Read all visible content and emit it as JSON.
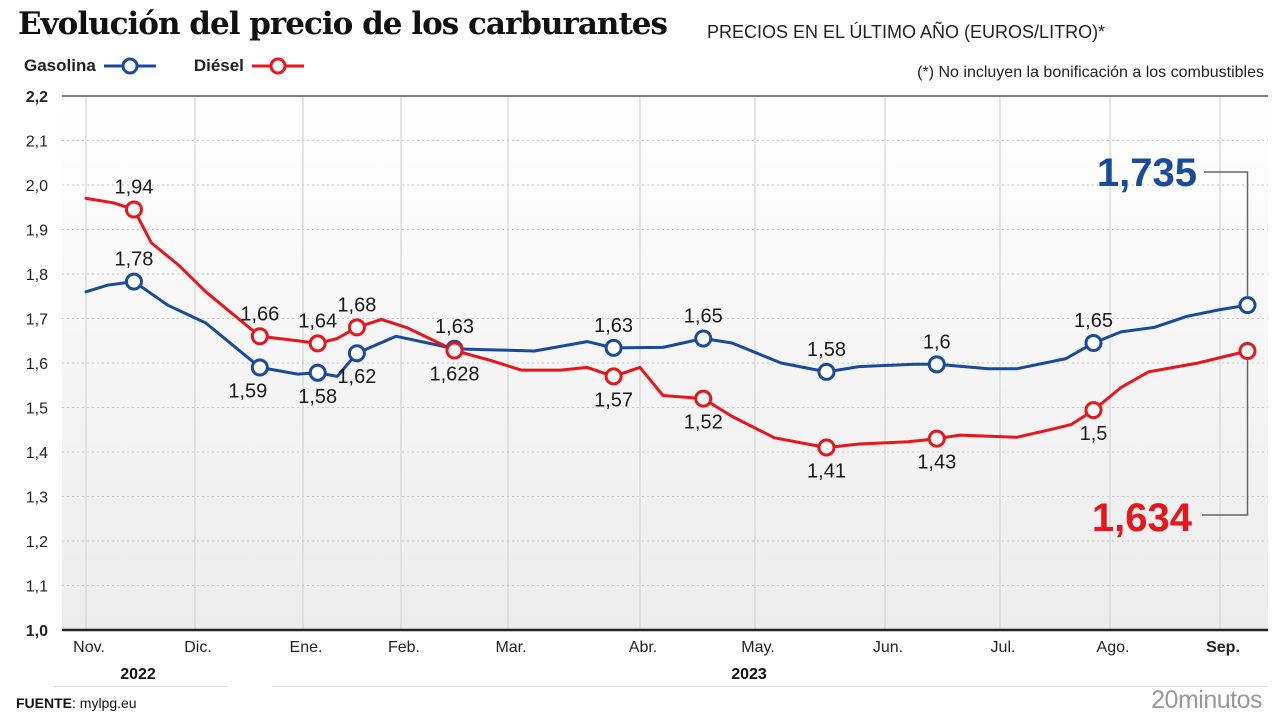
{
  "header": {
    "title": "Evolución del precio de los carburantes",
    "subtitle": "PRECIOS EN EL ÚLTIMO AÑO (EUROS/LITRO)*",
    "note": "(*) No incluyen la bonificación a los combustibles"
  },
  "legend": [
    {
      "label": "Gasolina",
      "color": "#1a4a9c"
    },
    {
      "label": "Diésel",
      "color": "#e8151b"
    }
  ],
  "footer": {
    "source_label": "FUENTE",
    "source_value": ": mylpg.eu",
    "brand": "20minutos"
  },
  "chart_data": {
    "type": "line",
    "title": "Evolución del precio de los carburantes",
    "subtitle": "PRECIOS EN EL ÚLTIMO AÑO (EUROS/LITRO)*",
    "xlabel": "",
    "ylabel": "Euros/litro",
    "ylim": [
      1.0,
      2.2
    ],
    "yticks": [
      "2,2",
      "2,1",
      "2,0",
      "1,9",
      "1,8",
      "1,7",
      "1,6",
      "1,5",
      "1,4",
      "1,3",
      "1,2",
      "1,1",
      "1,0"
    ],
    "ytick_values": [
      2.2,
      2.1,
      2.0,
      1.9,
      1.8,
      1.7,
      1.6,
      1.5,
      1.4,
      1.3,
      1.2,
      1.1,
      1.0
    ],
    "grid": true,
    "legend_position": "top-left",
    "x_unit": "months since start of Nov 2022",
    "xlim": [
      -0.05,
      10.3
    ],
    "months": [
      {
        "label": "Nov.",
        "x": 0,
        "bold": false
      },
      {
        "label": "Dic.",
        "x": 1,
        "bold": false
      },
      {
        "label": "Ene.",
        "x": 2,
        "bold": false
      },
      {
        "label": "Feb.",
        "x": 3,
        "bold": false
      },
      {
        "label": "Mar.",
        "x": 4,
        "bold": false
      },
      {
        "label": "Abr.",
        "x": 5,
        "bold": false
      },
      {
        "label": "May.",
        "x": 6,
        "bold": false
      },
      {
        "label": "Jun.",
        "x": 7,
        "bold": false
      },
      {
        "label": "Jul.",
        "x": 8,
        "bold": false
      },
      {
        "label": "Ago.",
        "x": 9,
        "bold": false
      },
      {
        "label": "Sep.",
        "x": 10,
        "bold": true
      }
    ],
    "years": [
      {
        "label": "2022",
        "from": -0.05,
        "to": 1.7
      },
      {
        "label": "2023",
        "from": 2.15,
        "to": 10.3
      }
    ],
    "series": [
      {
        "name": "Gasolina",
        "color": "#1a4a9c",
        "points": [
          [
            0.0,
            1.76
          ],
          [
            0.2,
            1.775
          ],
          [
            0.44,
            1.783
          ],
          [
            0.75,
            1.73
          ],
          [
            1.1,
            1.69
          ],
          [
            1.35,
            1.64
          ],
          [
            1.6,
            1.59
          ],
          [
            1.95,
            1.575
          ],
          [
            2.15,
            1.578
          ],
          [
            2.35,
            1.57
          ],
          [
            2.55,
            1.622
          ],
          [
            2.95,
            1.66
          ],
          [
            3.25,
            1.645
          ],
          [
            3.5,
            1.632
          ],
          [
            3.8,
            1.63
          ],
          [
            4.2,
            1.627
          ],
          [
            4.6,
            1.648
          ],
          [
            4.8,
            1.634
          ],
          [
            5.2,
            1.635
          ],
          [
            5.55,
            1.655
          ],
          [
            5.8,
            1.645
          ],
          [
            6.2,
            1.6
          ],
          [
            6.55,
            1.58
          ],
          [
            6.8,
            1.592
          ],
          [
            7.25,
            1.597
          ],
          [
            7.45,
            1.597
          ],
          [
            7.9,
            1.587
          ],
          [
            8.15,
            1.587
          ],
          [
            8.6,
            1.61
          ],
          [
            8.85,
            1.645
          ],
          [
            9.1,
            1.67
          ],
          [
            9.4,
            1.68
          ],
          [
            9.7,
            1.705
          ],
          [
            10.0,
            1.72
          ],
          [
            10.25,
            1.73
          ]
        ],
        "markers": [
          {
            "x": 0.44,
            "y": 1.783,
            "label": "1,78",
            "pos": "above"
          },
          {
            "x": 1.6,
            "y": 1.59,
            "label": "1,59",
            "pos": "below-left"
          },
          {
            "x": 2.15,
            "y": 1.578,
            "label": "1,58",
            "pos": "below"
          },
          {
            "x": 2.55,
            "y": 1.622,
            "label": "1,62",
            "pos": "below"
          },
          {
            "x": 3.5,
            "y": 1.632,
            "label": "1,63",
            "pos": "above"
          },
          {
            "x": 4.8,
            "y": 1.634,
            "label": "1,63",
            "pos": "above"
          },
          {
            "x": 5.55,
            "y": 1.655,
            "label": "1,65",
            "pos": "above"
          },
          {
            "x": 6.55,
            "y": 1.58,
            "label": "1,58",
            "pos": "above"
          },
          {
            "x": 7.45,
            "y": 1.597,
            "label": "1,6",
            "pos": "above"
          },
          {
            "x": 8.85,
            "y": 1.645,
            "label": "1,65",
            "pos": "above"
          },
          {
            "x": 10.25,
            "y": 1.73,
            "label": "",
            "pos": "none"
          }
        ],
        "final_value": "1,735"
      },
      {
        "name": "Diésel",
        "color": "#e8151b",
        "points": [
          [
            0.0,
            1.97
          ],
          [
            0.25,
            1.96
          ],
          [
            0.44,
            1.945
          ],
          [
            0.6,
            1.87
          ],
          [
            0.85,
            1.82
          ],
          [
            1.1,
            1.76
          ],
          [
            1.6,
            1.66
          ],
          [
            1.95,
            1.65
          ],
          [
            2.15,
            1.644
          ],
          [
            2.35,
            1.655
          ],
          [
            2.55,
            1.68
          ],
          [
            2.8,
            1.698
          ],
          [
            3.05,
            1.68
          ],
          [
            3.5,
            1.628
          ],
          [
            3.85,
            1.605
          ],
          [
            4.1,
            1.584
          ],
          [
            4.4,
            1.584
          ],
          [
            4.6,
            1.59
          ],
          [
            4.8,
            1.57
          ],
          [
            5.0,
            1.59
          ],
          [
            5.2,
            1.527
          ],
          [
            5.55,
            1.52
          ],
          [
            5.8,
            1.48
          ],
          [
            6.15,
            1.432
          ],
          [
            6.55,
            1.41
          ],
          [
            6.8,
            1.418
          ],
          [
            7.2,
            1.423
          ],
          [
            7.45,
            1.43
          ],
          [
            7.65,
            1.438
          ],
          [
            8.15,
            1.433
          ],
          [
            8.45,
            1.45
          ],
          [
            8.65,
            1.462
          ],
          [
            8.85,
            1.494
          ],
          [
            9.1,
            1.545
          ],
          [
            9.35,
            1.58
          ],
          [
            9.8,
            1.6
          ],
          [
            10.25,
            1.627
          ]
        ],
        "markers": [
          {
            "x": 0.44,
            "y": 1.945,
            "label": "1,94",
            "pos": "above"
          },
          {
            "x": 1.6,
            "y": 1.66,
            "label": "1,66",
            "pos": "above"
          },
          {
            "x": 2.15,
            "y": 1.644,
            "label": "1,64",
            "pos": "above"
          },
          {
            "x": 2.55,
            "y": 1.68,
            "label": "1,68",
            "pos": "above"
          },
          {
            "x": 3.5,
            "y": 1.628,
            "label": "1,628",
            "pos": "below"
          },
          {
            "x": 4.8,
            "y": 1.57,
            "label": "1,57",
            "pos": "below"
          },
          {
            "x": 5.55,
            "y": 1.52,
            "label": "1,52",
            "pos": "below"
          },
          {
            "x": 6.55,
            "y": 1.41,
            "label": "1,41",
            "pos": "below"
          },
          {
            "x": 7.45,
            "y": 1.43,
            "label": "1,43",
            "pos": "below"
          },
          {
            "x": 8.85,
            "y": 1.494,
            "label": "1,5",
            "pos": "below"
          },
          {
            "x": 10.25,
            "y": 1.627,
            "label": "",
            "pos": "none"
          }
        ],
        "final_value": "1,634"
      }
    ],
    "annotations": [
      {
        "text": "1,735",
        "series": "Gasolina"
      },
      {
        "text": "1,634",
        "series": "Diésel"
      }
    ]
  }
}
